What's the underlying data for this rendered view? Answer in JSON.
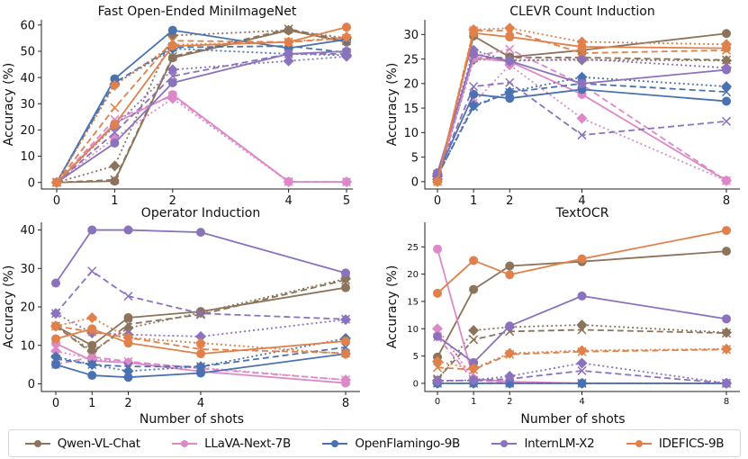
{
  "models": [
    {
      "name": "Qwen-VL-Chat",
      "color": "#8c735b"
    },
    {
      "name": "LLaVA-Next-7B",
      "color": "#dd88c8"
    },
    {
      "name": "OpenFlamingo-9B",
      "color": "#4a72b0"
    },
    {
      "name": "InternLM-X2",
      "color": "#8b72bd"
    },
    {
      "name": "IDEFICS-9B",
      "color": "#e0804a"
    }
  ],
  "legend": {
    "entries": [
      "Qwen-VL-Chat",
      "LLaVA-Next-7B",
      "OpenFlamingo-9B",
      "InternLM-X2",
      "IDEFICS-9B"
    ],
    "placement": "bottom-center"
  },
  "line_styles": {
    "solid": "circle marker",
    "dashed": "x marker",
    "dotted": "diamond marker"
  },
  "chart_data": [
    {
      "type": "line",
      "title": "Fast Open-Ended MiniImageNet",
      "xlabel": "",
      "ylabel": "Accuracy (%)",
      "x": [
        0,
        1,
        2,
        4,
        5
      ],
      "xticks": [
        0,
        1,
        2,
        4,
        5
      ],
      "yticks": [
        0,
        10,
        20,
        30,
        40,
        50,
        60
      ],
      "ylim": [
        -2.5,
        62
      ],
      "grid": false,
      "series": [
        {
          "model": "Qwen-VL-Chat",
          "style": "solid",
          "values": [
            0,
            0.5,
            47.5,
            58,
            53.5
          ]
        },
        {
          "model": "Qwen-VL-Chat",
          "style": "dashed",
          "values": [
            0,
            1,
            48,
            58.5,
            54
          ]
        },
        {
          "model": "Qwen-VL-Chat",
          "style": "dotted",
          "values": [
            0,
            6.3,
            56,
            58,
            55
          ]
        },
        {
          "model": "LLaVA-Next-7B",
          "style": "solid",
          "values": [
            0,
            22.5,
            33.5,
            0.3,
            0.2
          ]
        },
        {
          "model": "LLaVA-Next-7B",
          "style": "dashed",
          "values": [
            0,
            24,
            33,
            0.3,
            0.2
          ]
        },
        {
          "model": "LLaVA-Next-7B",
          "style": "dotted",
          "values": [
            0,
            17,
            32,
            0.2,
            0.2
          ]
        },
        {
          "model": "OpenFlamingo-9B",
          "style": "solid",
          "values": [
            0,
            39.5,
            58,
            51.2,
            54.5
          ]
        },
        {
          "model": "OpenFlamingo-9B",
          "style": "dashed",
          "values": [
            0,
            38,
            51.5,
            52,
            49.5
          ]
        },
        {
          "model": "OpenFlamingo-9B",
          "style": "dotted",
          "values": [
            0,
            37.5,
            51,
            49,
            48.5
          ]
        },
        {
          "model": "InternLM-X2",
          "style": "solid",
          "values": [
            0,
            15,
            38,
            49,
            50
          ]
        },
        {
          "model": "InternLM-X2",
          "style": "dashed",
          "values": [
            0,
            19,
            40.5,
            49,
            49
          ]
        },
        {
          "model": "InternLM-X2",
          "style": "dotted",
          "values": [
            0,
            21.5,
            43,
            46.3,
            48
          ]
        },
        {
          "model": "IDEFICS-9B",
          "style": "solid",
          "values": [
            0,
            22,
            52,
            53.5,
            59.2
          ]
        },
        {
          "model": "IDEFICS-9B",
          "style": "dashed",
          "values": [
            0,
            28.5,
            54,
            53.5,
            55
          ]
        },
        {
          "model": "IDEFICS-9B",
          "style": "dotted",
          "values": [
            0,
            37,
            52.5,
            53.5,
            55.5
          ]
        }
      ]
    },
    {
      "type": "line",
      "title": "CLEVR Count Induction",
      "xlabel": "",
      "ylabel": "Accuracy (%)",
      "x": [
        0,
        1,
        2,
        4,
        8
      ],
      "xticks": [
        0,
        1,
        2,
        4,
        8
      ],
      "yticks": [
        0,
        5,
        10,
        15,
        20,
        25,
        30
      ],
      "ylim": [
        -1.5,
        33
      ],
      "grid": false,
      "series": [
        {
          "model": "Qwen-VL-Chat",
          "style": "solid",
          "values": [
            0.5,
            29.7,
            25.4,
            26.8,
            30.2
          ]
        },
        {
          "model": "Qwen-VL-Chat",
          "style": "dashed",
          "values": [
            0.5,
            25.2,
            25.3,
            25.3,
            24.8
          ]
        },
        {
          "model": "Qwen-VL-Chat",
          "style": "dotted",
          "values": [
            0.5,
            24.9,
            24.8,
            24.8,
            24.7
          ]
        },
        {
          "model": "LLaVA-Next-7B",
          "style": "solid",
          "values": [
            1,
            25.2,
            24.5,
            17.8,
            0.2
          ]
        },
        {
          "model": "LLaVA-Next-7B",
          "style": "dashed",
          "values": [
            1,
            25.5,
            27,
            19.8,
            0.2
          ]
        },
        {
          "model": "LLaVA-Next-7B",
          "style": "dotted",
          "values": [
            1,
            16,
            23.8,
            12.9,
            0.2
          ]
        },
        {
          "model": "OpenFlamingo-9B",
          "style": "solid",
          "values": [
            1.5,
            17.8,
            17,
            18.8,
            16.4
          ]
        },
        {
          "model": "OpenFlamingo-9B",
          "style": "dashed",
          "values": [
            1.2,
            15.3,
            18.2,
            20,
            18.3
          ]
        },
        {
          "model": "OpenFlamingo-9B",
          "style": "dotted",
          "values": [
            1.2,
            15.5,
            18.3,
            21.3,
            19.4
          ]
        },
        {
          "model": "InternLM-X2",
          "style": "solid",
          "values": [
            1.8,
            26,
            24.6,
            20,
            22.8
          ]
        },
        {
          "model": "InternLM-X2",
          "style": "dashed",
          "values": [
            1.5,
            19.4,
            20.2,
            9.5,
            12.3
          ]
        },
        {
          "model": "InternLM-X2",
          "style": "dotted",
          "values": [
            1.6,
            26.8,
            24.6,
            25,
            23.2
          ]
        },
        {
          "model": "IDEFICS-9B",
          "style": "solid",
          "values": [
            0,
            30.3,
            29.5,
            27.5,
            27.2
          ]
        },
        {
          "model": "IDEFICS-9B",
          "style": "dashed",
          "values": [
            0,
            30.8,
            30.8,
            26.2,
            26.8
          ]
        },
        {
          "model": "IDEFICS-9B",
          "style": "dotted",
          "values": [
            0,
            31,
            31.3,
            28.5,
            28
          ]
        }
      ]
    },
    {
      "type": "line",
      "title": "Operator Induction",
      "xlabel": "Number of shots",
      "ylabel": "Accuracy (%)",
      "x": [
        0,
        1,
        2,
        4,
        8
      ],
      "xticks": [
        0,
        1,
        2,
        4,
        8
      ],
      "yticks": [
        0,
        10,
        20,
        30,
        40
      ],
      "ylim": [
        -2,
        42
      ],
      "grid": false,
      "series": [
        {
          "model": "Qwen-VL-Chat",
          "style": "solid",
          "values": [
            15,
            10,
            17.2,
            18.8,
            25
          ]
        },
        {
          "model": "Qwen-VL-Chat",
          "style": "dashed",
          "values": [
            15,
            8,
            15.5,
            18,
            27
          ]
        },
        {
          "model": "Qwen-VL-Chat",
          "style": "dotted",
          "values": [
            15,
            8.5,
            14.5,
            18.5,
            27.3
          ]
        },
        {
          "model": "LLaVA-Next-7B",
          "style": "solid",
          "values": [
            10.5,
            6,
            5.5,
            3.2,
            0.2
          ]
        },
        {
          "model": "LLaVA-Next-7B",
          "style": "dashed",
          "values": [
            5,
            7,
            5.8,
            4,
            1
          ]
        },
        {
          "model": "LLaVA-Next-7B",
          "style": "dotted",
          "values": [
            8.5,
            6.5,
            5.5,
            4.2,
            1
          ]
        },
        {
          "model": "OpenFlamingo-9B",
          "style": "solid",
          "values": [
            5,
            2.2,
            1.7,
            2.8,
            7.8
          ]
        },
        {
          "model": "OpenFlamingo-9B",
          "style": "dashed",
          "values": [
            6.5,
            5,
            4.5,
            4.5,
            9.5
          ]
        },
        {
          "model": "OpenFlamingo-9B",
          "style": "dotted",
          "values": [
            7,
            5,
            3.3,
            4.5,
            11.8
          ]
        },
        {
          "model": "InternLM-X2",
          "style": "solid",
          "values": [
            26.2,
            40,
            40,
            39.4,
            28.8
          ]
        },
        {
          "model": "InternLM-X2",
          "style": "dashed",
          "values": [
            18.3,
            29.3,
            22.8,
            18.3,
            16.8
          ]
        },
        {
          "model": "InternLM-X2",
          "style": "dotted",
          "values": [
            18.3,
            13.2,
            12.8,
            12.3,
            16.7
          ]
        },
        {
          "model": "IDEFICS-9B",
          "style": "solid",
          "values": [
            11.7,
            14.3,
            10.6,
            7.8,
            11.1
          ]
        },
        {
          "model": "IDEFICS-9B",
          "style": "dashed",
          "values": [
            15,
            13.5,
            12,
            9,
            8
          ]
        },
        {
          "model": "IDEFICS-9B",
          "style": "dotted",
          "values": [
            15,
            17.2,
            12,
            10.6,
            7.8
          ]
        }
      ]
    },
    {
      "type": "line",
      "title": "TextOCR",
      "xlabel": "Number of shots",
      "ylabel": "Accuracy (%)",
      "x": [
        0,
        1,
        2,
        4,
        8
      ],
      "xticks": [
        0,
        1,
        2,
        4,
        8
      ],
      "yticks": [
        0,
        5,
        10,
        15,
        20,
        25
      ],
      "ylim": [
        -1.5,
        29.5
      ],
      "grid": false,
      "series": [
        {
          "model": "Qwen-VL-Chat",
          "style": "solid",
          "values": [
            4.8,
            17.2,
            21.5,
            22.3,
            24.2
          ]
        },
        {
          "model": "Qwen-VL-Chat",
          "style": "dashed",
          "values": [
            0.8,
            8,
            9.5,
            9.8,
            9.2
          ]
        },
        {
          "model": "Qwen-VL-Chat",
          "style": "dotted",
          "values": [
            0.5,
            9.7,
            10.3,
            10.7,
            9.3
          ]
        },
        {
          "model": "LLaVA-Next-7B",
          "style": "solid",
          "values": [
            24.6,
            0.8,
            0.3,
            0,
            0
          ]
        },
        {
          "model": "LLaVA-Next-7B",
          "style": "dashed",
          "values": [
            8.5,
            0.5,
            0.2,
            0,
            0
          ]
        },
        {
          "model": "LLaVA-Next-7B",
          "style": "dotted",
          "values": [
            10,
            0.8,
            0.2,
            0,
            0
          ]
        },
        {
          "model": "OpenFlamingo-9B",
          "style": "solid",
          "values": [
            0,
            0,
            0,
            0,
            0
          ]
        },
        {
          "model": "OpenFlamingo-9B",
          "style": "dashed",
          "values": [
            0,
            0,
            0,
            0,
            0
          ]
        },
        {
          "model": "OpenFlamingo-9B",
          "style": "dotted",
          "values": [
            0,
            0,
            0,
            0,
            0
          ]
        },
        {
          "model": "InternLM-X2",
          "style": "solid",
          "values": [
            8.6,
            3.8,
            10.5,
            16,
            11.8
          ]
        },
        {
          "model": "InternLM-X2",
          "style": "dashed",
          "values": [
            0.5,
            0.5,
            0.8,
            2.3,
            0
          ]
        },
        {
          "model": "InternLM-X2",
          "style": "dotted",
          "values": [
            0.4,
            0.6,
            1.3,
            3.7,
            0
          ]
        },
        {
          "model": "IDEFICS-9B",
          "style": "solid",
          "values": [
            16.5,
            22.5,
            19.9,
            22.8,
            28
          ]
        },
        {
          "model": "IDEFICS-9B",
          "style": "dashed",
          "values": [
            2.9,
            2.5,
            5.3,
            5.8,
            6.2
          ]
        },
        {
          "model": "IDEFICS-9B",
          "style": "dotted",
          "values": [
            4,
            2.7,
            5.5,
            6,
            6.3
          ]
        }
      ]
    }
  ]
}
